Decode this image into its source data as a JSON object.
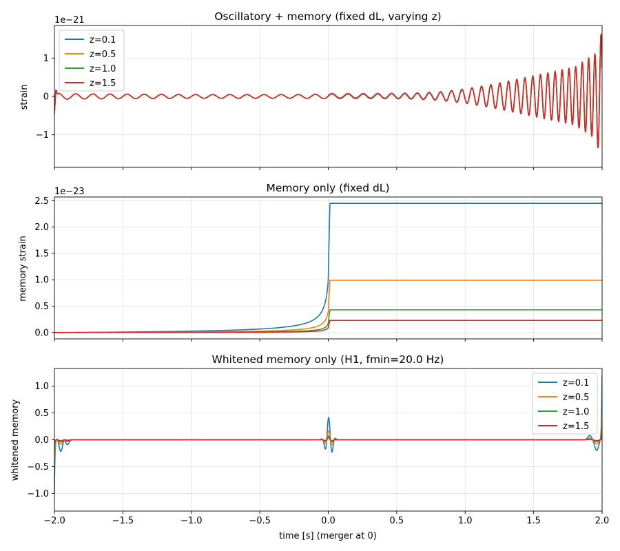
{
  "chart_data": [
    {
      "type": "line",
      "title": "Oscillatory + memory (fixed dL, varying z)",
      "ylabel": "strain",
      "xlabel": "",
      "y_offset_label": "1e−21",
      "xlim": [
        -2.0,
        2.0
      ],
      "ylim": [
        -1.85,
        1.85
      ],
      "yticks": [
        -1,
        0,
        1
      ],
      "ytick_labels": [
        "−1",
        "0",
        "1"
      ],
      "xtick_labels_shown": false,
      "grid": true,
      "legend": {
        "placement": "upper-left"
      },
      "series": [
        {
          "name": "z=0.1",
          "color": "#1f77b4",
          "envelope": {
            "t": [
              -2.0,
              -1.98,
              -1.9,
              -1.5,
              -1.0,
              -0.5,
              -0.2,
              0.0,
              0.3,
              0.6,
              0.8,
              1.0,
              1.2,
              1.4,
              1.6,
              1.8,
              1.95,
              2.0
            ],
            "amp": [
              0.6,
              0.08,
              0.07,
              0.06,
              0.05,
              0.05,
              0.05,
              0.06,
              0.06,
              0.07,
              0.1,
              0.18,
              0.3,
              0.45,
              0.6,
              0.75,
              1.1,
              1.7
            ]
          },
          "offset_after_merger": 0.02
        },
        {
          "name": "z=0.5",
          "color": "#ff7f0e",
          "envelope": {
            "t": [
              -2.0,
              -1.98,
              -1.9,
              -1.5,
              -1.0,
              -0.5,
              -0.2,
              0.0,
              0.3,
              0.6,
              0.8,
              1.0,
              1.2,
              1.4,
              1.6,
              1.8,
              1.95,
              2.0
            ],
            "amp": [
              0.6,
              0.08,
              0.07,
              0.06,
              0.05,
              0.05,
              0.05,
              0.06,
              0.06,
              0.07,
              0.1,
              0.18,
              0.3,
              0.45,
              0.6,
              0.75,
              1.1,
              1.7
            ]
          },
          "offset_after_merger": 0.01
        },
        {
          "name": "z=1.0",
          "color": "#2ca02c",
          "envelope": {
            "t": [
              -2.0,
              -1.98,
              -1.9,
              -1.5,
              -1.0,
              -0.5,
              -0.2,
              0.0,
              0.3,
              0.6,
              0.8,
              1.0,
              1.2,
              1.4,
              1.6,
              1.8,
              1.95,
              2.0
            ],
            "amp": [
              0.6,
              0.08,
              0.07,
              0.06,
              0.05,
              0.05,
              0.05,
              0.06,
              0.06,
              0.07,
              0.1,
              0.18,
              0.3,
              0.45,
              0.6,
              0.75,
              1.1,
              1.7
            ]
          },
          "offset_after_merger": 0.004
        },
        {
          "name": "z=1.5",
          "color": "#d62728",
          "envelope": {
            "t": [
              -2.0,
              -1.98,
              -1.9,
              -1.5,
              -1.0,
              -0.5,
              -0.2,
              0.0,
              0.3,
              0.6,
              0.8,
              1.0,
              1.2,
              1.4,
              1.6,
              1.8,
              1.95,
              2.0
            ],
            "amp": [
              0.6,
              0.08,
              0.07,
              0.06,
              0.05,
              0.05,
              0.05,
              0.06,
              0.06,
              0.07,
              0.1,
              0.18,
              0.3,
              0.45,
              0.6,
              0.75,
              1.1,
              1.7
            ]
          },
          "offset_after_merger": 0.002
        }
      ]
    },
    {
      "type": "line",
      "title": "Memory only (fixed dL)",
      "ylabel": "memory strain",
      "xlabel": "",
      "y_offset_label": "1e−23",
      "xlim": [
        -2.0,
        2.0
      ],
      "ylim": [
        -0.12,
        2.57
      ],
      "yticks": [
        0.0,
        0.5,
        1.0,
        1.5,
        2.0,
        2.5
      ],
      "ytick_labels": [
        "0.0",
        "0.5",
        "1.0",
        "1.5",
        "2.0",
        "2.5"
      ],
      "xtick_labels_shown": false,
      "grid": true,
      "legend": null,
      "series": [
        {
          "name": "z=0.1",
          "color": "#1f77b4",
          "final_value": 2.45
        },
        {
          "name": "z=0.5",
          "color": "#ff7f0e",
          "final_value": 0.99
        },
        {
          "name": "z=1.0",
          "color": "#2ca02c",
          "final_value": 0.43
        },
        {
          "name": "z=1.5",
          "color": "#d62728",
          "final_value": 0.23
        }
      ]
    },
    {
      "type": "line",
      "title": "Whitened memory only (H1, fmin=20.0 Hz)",
      "ylabel": "whitened memory",
      "xlabel": "time [s] (merger at 0)",
      "xlim": [
        -2.0,
        2.0
      ],
      "ylim": [
        -1.33,
        1.33
      ],
      "yticks": [
        -1.0,
        -0.5,
        0.0,
        0.5,
        1.0
      ],
      "ytick_labels": [
        "−1.0",
        "−0.5",
        "0.0",
        "0.5",
        "1.0"
      ],
      "xticks": [
        -2.0,
        -1.5,
        -1.0,
        -0.5,
        0.0,
        0.5,
        1.0,
        1.5,
        2.0
      ],
      "xtick_labels": [
        "−2.0",
        "−1.5",
        "−1.0",
        "−0.5",
        "0.0",
        "0.5",
        "1.0",
        "1.5",
        "2.0"
      ],
      "xtick_labels_shown": true,
      "grid": true,
      "legend": {
        "placement": "upper-right"
      },
      "series": [
        {
          "name": "z=0.1",
          "color": "#1f77b4",
          "events": [
            {
              "t": -2.0,
              "peak": -1.0
            },
            {
              "t": 0.0,
              "peak": 0.42
            },
            {
              "t": 2.0,
              "peak": 1.2
            }
          ],
          "scale": 1.0
        },
        {
          "name": "z=0.5",
          "color": "#ff7f0e",
          "events": [
            {
              "t": -2.0,
              "peak": -1.0
            },
            {
              "t": 0.0,
              "peak": 0.42
            },
            {
              "t": 2.0,
              "peak": 1.2
            }
          ],
          "scale": 0.4
        },
        {
          "name": "z=1.0",
          "color": "#2ca02c",
          "events": [
            {
              "t": -2.0,
              "peak": -1.0
            },
            {
              "t": 0.0,
              "peak": 0.42
            },
            {
              "t": 2.0,
              "peak": 1.2
            }
          ],
          "scale": 0.18
        },
        {
          "name": "z=1.5",
          "color": "#d62728",
          "events": [
            {
              "t": -2.0,
              "peak": -1.0
            },
            {
              "t": 0.0,
              "peak": 0.42
            },
            {
              "t": 2.0,
              "peak": 1.2
            }
          ],
          "scale": 0.09
        }
      ]
    }
  ]
}
